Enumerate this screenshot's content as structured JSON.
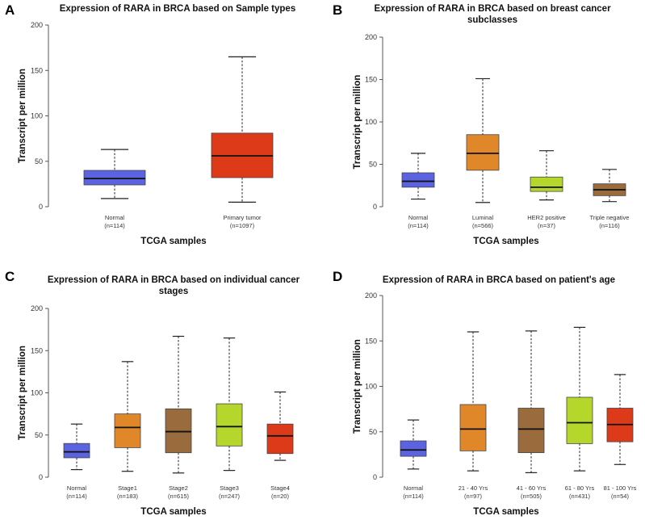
{
  "chart_data": [
    {
      "type": "box",
      "panel": "A",
      "title": [
        "Expression of RARA in BRCA based on Sample types"
      ],
      "xlabel": "TCGA samples",
      "ylabel": "Transcript per million",
      "ylim": [
        0,
        200
      ],
      "yticks": [
        0,
        50,
        100,
        150,
        200
      ],
      "boxes": [
        {
          "label": "Normal",
          "n": "(n=114)",
          "color": "#5b63e0",
          "min": 9,
          "q1": 24,
          "median": 31,
          "q3": 40,
          "max": 63
        },
        {
          "label": "Primary tumor",
          "n": "(n=1097)",
          "color": "#dd3a1a",
          "min": 5,
          "q1": 32,
          "median": 56,
          "q3": 81,
          "max": 165
        }
      ]
    },
    {
      "type": "box",
      "panel": "B",
      "title": [
        "Expression of RARA in BRCA based on breast cancer",
        "subclasses"
      ],
      "xlabel": "TCGA samples",
      "ylabel": "Transcript per million",
      "ylim": [
        0,
        200
      ],
      "yticks": [
        0,
        50,
        100,
        150,
        200
      ],
      "boxes": [
        {
          "label": "Normal",
          "n": "(n=114)",
          "color": "#5b63e0",
          "min": 9,
          "q1": 23,
          "median": 30,
          "q3": 40,
          "max": 63
        },
        {
          "label": "Luminal",
          "n": "(n=566)",
          "color": "#e0872a",
          "min": 5,
          "q1": 43,
          "median": 63,
          "q3": 85,
          "max": 151
        },
        {
          "label": "HER2 positive",
          "n": "(n=37)",
          "color": "#b5d62a",
          "min": 8,
          "q1": 18,
          "median": 23,
          "q3": 35,
          "max": 66
        },
        {
          "label": "Triple negative",
          "n": "(n=116)",
          "color": "#9a6b3c",
          "min": 6,
          "q1": 13,
          "median": 20,
          "q3": 27,
          "max": 44
        }
      ]
    },
    {
      "type": "box",
      "panel": "C",
      "title": [
        "Expression of RARA in BRCA based on individual cancer",
        "stages"
      ],
      "xlabel": "TCGA samples",
      "ylabel": "Transcript per million",
      "ylim": [
        0,
        200
      ],
      "yticks": [
        0,
        50,
        100,
        150,
        200
      ],
      "boxes": [
        {
          "label": "Normal",
          "n": "(n=114)",
          "color": "#5b63e0",
          "min": 9,
          "q1": 23,
          "median": 30,
          "q3": 40,
          "max": 63
        },
        {
          "label": "Stage1",
          "n": "(n=183)",
          "color": "#e0872a",
          "min": 7,
          "q1": 35,
          "median": 59,
          "q3": 75,
          "max": 137
        },
        {
          "label": "Stage2",
          "n": "(n=615)",
          "color": "#9a6b3c",
          "min": 5,
          "q1": 29,
          "median": 54,
          "q3": 81,
          "max": 167
        },
        {
          "label": "Stage3",
          "n": "(n=247)",
          "color": "#b5d62a",
          "min": 8,
          "q1": 37,
          "median": 60,
          "q3": 87,
          "max": 165
        },
        {
          "label": "Stage4",
          "n": "(n=20)",
          "color": "#dd3a1a",
          "min": 20,
          "q1": 28,
          "median": 49,
          "q3": 63,
          "max": 101
        }
      ]
    },
    {
      "type": "box",
      "panel": "D",
      "title": [
        "Expression of RARA in BRCA based on patient's age"
      ],
      "xlabel": "TCGA samples",
      "ylabel": "Transcript per million",
      "ylim": [
        0,
        200
      ],
      "yticks": [
        0,
        50,
        100,
        150,
        200
      ],
      "boxes": [
        {
          "label": "Normal",
          "n": "(n=114)",
          "color": "#5b63e0",
          "min": 9,
          "q1": 23,
          "median": 30,
          "q3": 40,
          "max": 63
        },
        {
          "label": "21 - 40 Yrs",
          "n": "(n=97)",
          "color": "#e0872a",
          "min": 7,
          "q1": 29,
          "median": 53,
          "q3": 80,
          "max": 160
        },
        {
          "label": "41 - 60 Yrs",
          "n": "(n=505)",
          "color": "#9a6b3c",
          "min": 5,
          "q1": 27,
          "median": 53,
          "q3": 76,
          "max": 161
        },
        {
          "label": "61 - 80 Yrs",
          "n": "(n=431)",
          "color": "#b5d62a",
          "min": 7,
          "q1": 37,
          "median": 60,
          "q3": 88,
          "max": 165
        },
        {
          "label": "81 - 100 Yrs",
          "n": "(n=54)",
          "color": "#dd3a1a",
          "min": 14,
          "q1": 39,
          "median": 58,
          "q3": 76,
          "max": 113
        }
      ]
    }
  ]
}
